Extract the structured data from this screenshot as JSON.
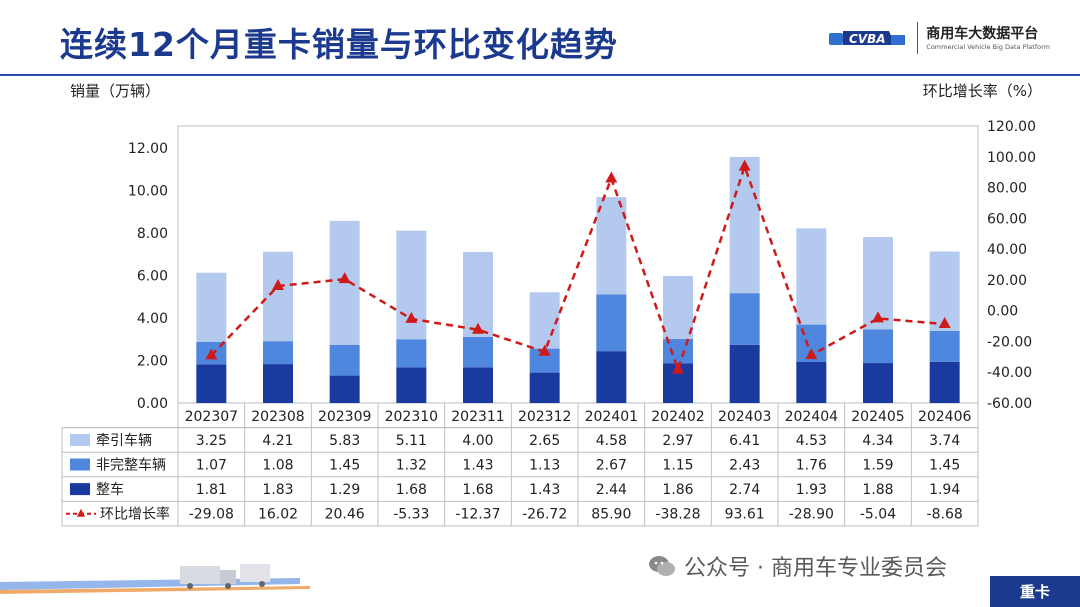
{
  "header": {
    "title": "连续12个月重卡销量与环比变化趋势",
    "brand_cn": "商用车大数据平台",
    "brand_en": "Commercial Vehicle Big Data Platform"
  },
  "axes_titles": {
    "left": "销量（万辆）",
    "right": "环比增长率（%）"
  },
  "footer": {
    "wechat": "公众号 · 商用车专业委员会",
    "tag": "重卡"
  },
  "colors": {
    "tractor": "#b4c9ee",
    "incomplete": "#4f86de",
    "complete": "#1a3aa0",
    "mom": "#d01a1a",
    "brand": "#1b3a8f"
  },
  "chart_data": {
    "type": "bar",
    "stacked": true,
    "categories": [
      "202307",
      "202308",
      "202309",
      "202310",
      "202311",
      "202312",
      "202401",
      "202402",
      "202403",
      "202404",
      "202405",
      "202406"
    ],
    "series": [
      {
        "name": "整车",
        "values": [
          1.81,
          1.83,
          1.29,
          1.68,
          1.68,
          1.43,
          2.44,
          1.86,
          2.74,
          1.93,
          1.88,
          1.94
        ]
      },
      {
        "name": "非完整车辆",
        "values": [
          1.07,
          1.08,
          1.45,
          1.32,
          1.43,
          1.13,
          2.67,
          1.15,
          2.43,
          1.76,
          1.59,
          1.45
        ]
      },
      {
        "name": "牵引车辆",
        "values": [
          3.25,
          4.21,
          5.83,
          5.11,
          4.0,
          2.65,
          4.58,
          2.97,
          6.41,
          4.53,
          4.34,
          3.74
        ]
      }
    ],
    "line_series": {
      "name": "环比增长率",
      "type": "line",
      "axis": "right",
      "values": [
        -29.08,
        16.02,
        20.46,
        -5.33,
        -12.37,
        -26.72,
        85.9,
        -38.28,
        93.61,
        -28.9,
        -5.04,
        -8.68
      ]
    },
    "table_rows": [
      {
        "name": "牵引车辆",
        "values": [
          "3.25",
          "4.21",
          "5.83",
          "5.11",
          "4.00",
          "2.65",
          "4.58",
          "2.97",
          "6.41",
          "4.53",
          "4.34",
          "3.74"
        ]
      },
      {
        "name": "非完整车辆",
        "values": [
          "1.07",
          "1.08",
          "1.45",
          "1.32",
          "1.43",
          "1.13",
          "2.67",
          "1.15",
          "2.43",
          "1.76",
          "1.59",
          "1.45"
        ]
      },
      {
        "name": "整车",
        "values": [
          "1.81",
          "1.83",
          "1.29",
          "1.68",
          "1.68",
          "1.43",
          "2.44",
          "1.86",
          "2.74",
          "1.93",
          "1.88",
          "1.94"
        ]
      },
      {
        "name": "环比增长率",
        "values": [
          "-29.08",
          "16.02",
          "20.46",
          "-5.33",
          "-12.37",
          "-26.72",
          "85.90",
          "-38.28",
          "93.61",
          "-28.90",
          "-5.04",
          "-8.68"
        ]
      }
    ],
    "ylim_left": [
      0,
      12
    ],
    "yticks_left": [
      "0.00",
      "2.00",
      "4.00",
      "6.00",
      "8.00",
      "10.00",
      "12.00"
    ],
    "ylim_right": [
      -60,
      120
    ],
    "yticks_right": [
      "-60.00",
      "-40.00",
      "-20.00",
      "0.00",
      "20.00",
      "40.00",
      "60.00",
      "80.00",
      "100.00",
      "120.00"
    ],
    "grid": false,
    "legend": "table-left"
  }
}
